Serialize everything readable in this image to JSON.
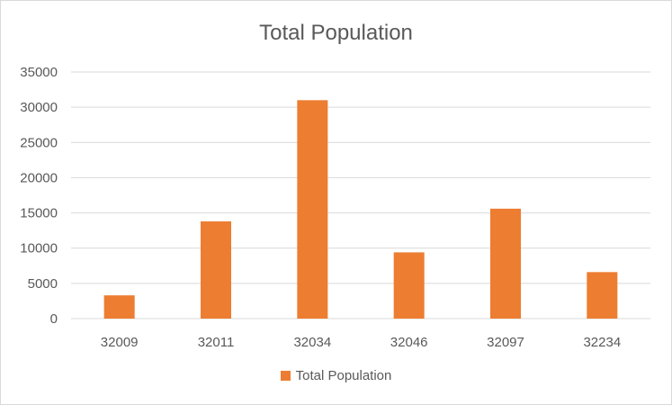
{
  "chart_data": {
    "type": "bar",
    "title": "Total Population",
    "categories": [
      "32009",
      "32011",
      "32034",
      "32046",
      "32097",
      "32234"
    ],
    "series": [
      {
        "name": "Total Population",
        "values": [
          3300,
          13800,
          31000,
          9400,
          15600,
          6600
        ],
        "color": "#ED7D31"
      }
    ],
    "ylim": [
      0,
      35000
    ],
    "yticks": [
      0,
      5000,
      10000,
      15000,
      20000,
      25000,
      30000,
      35000
    ],
    "xlabel": "",
    "ylabel": "",
    "grid": true,
    "legend": "bottom"
  }
}
